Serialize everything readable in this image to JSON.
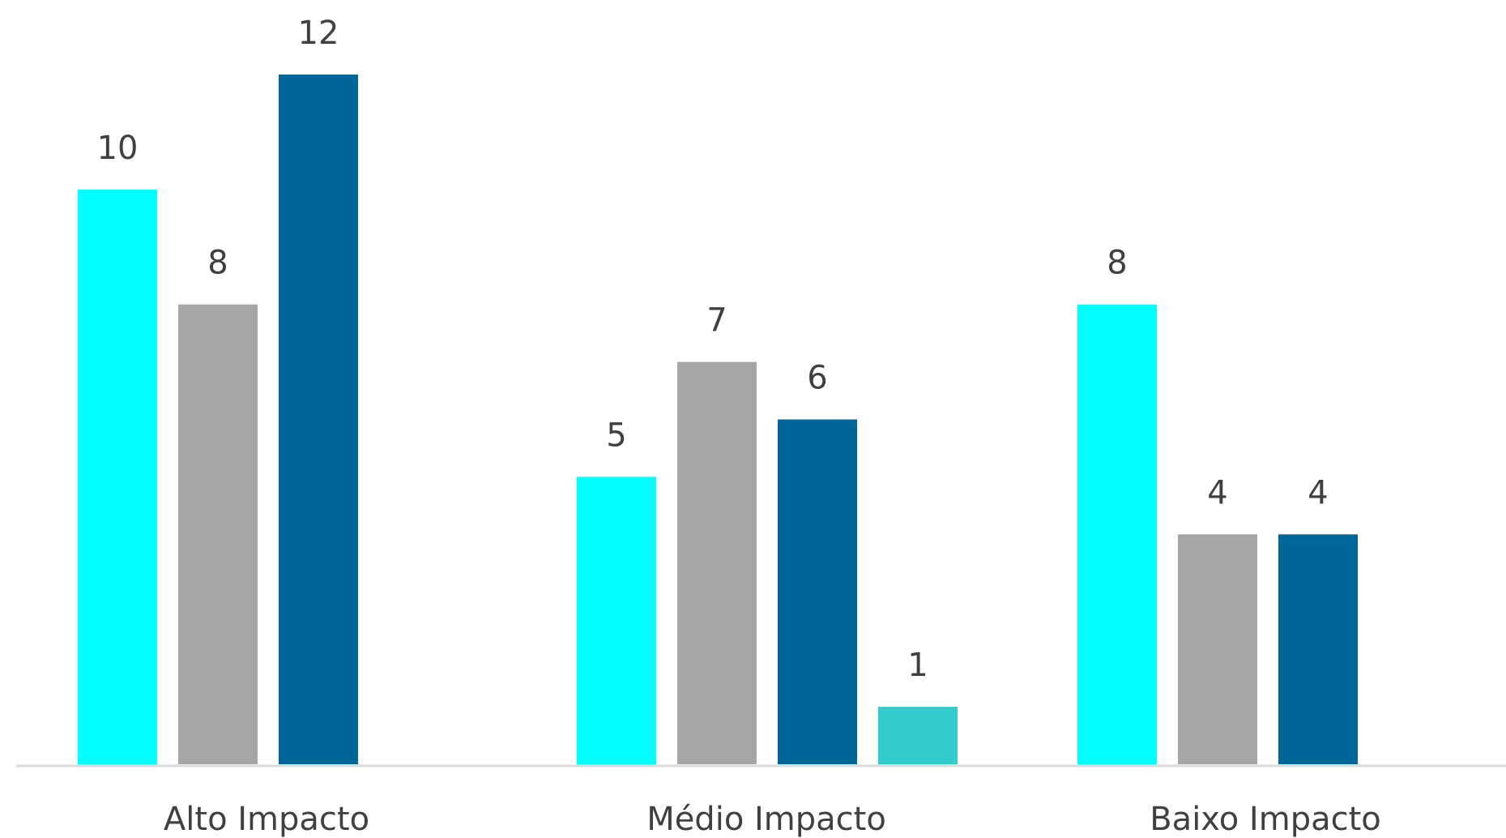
{
  "chart_data": {
    "type": "bar",
    "categories": [
      "Alto Impacto",
      "Médio Impacto",
      "Baixo Impacto"
    ],
    "series": [
      {
        "values": [
          10,
          5,
          8
        ],
        "color": "#00FFFF"
      },
      {
        "values": [
          8,
          7,
          4
        ],
        "color": "#A6A6A6"
      },
      {
        "values": [
          12,
          6,
          4
        ],
        "color": "#006699"
      },
      {
        "values": [
          null,
          1,
          null
        ],
        "color": "#33CCCC"
      }
    ],
    "title": "",
    "xlabel": "",
    "ylabel": "",
    "ylim": [
      0,
      12
    ],
    "grid": false,
    "legend": "none",
    "data_labels": true
  }
}
